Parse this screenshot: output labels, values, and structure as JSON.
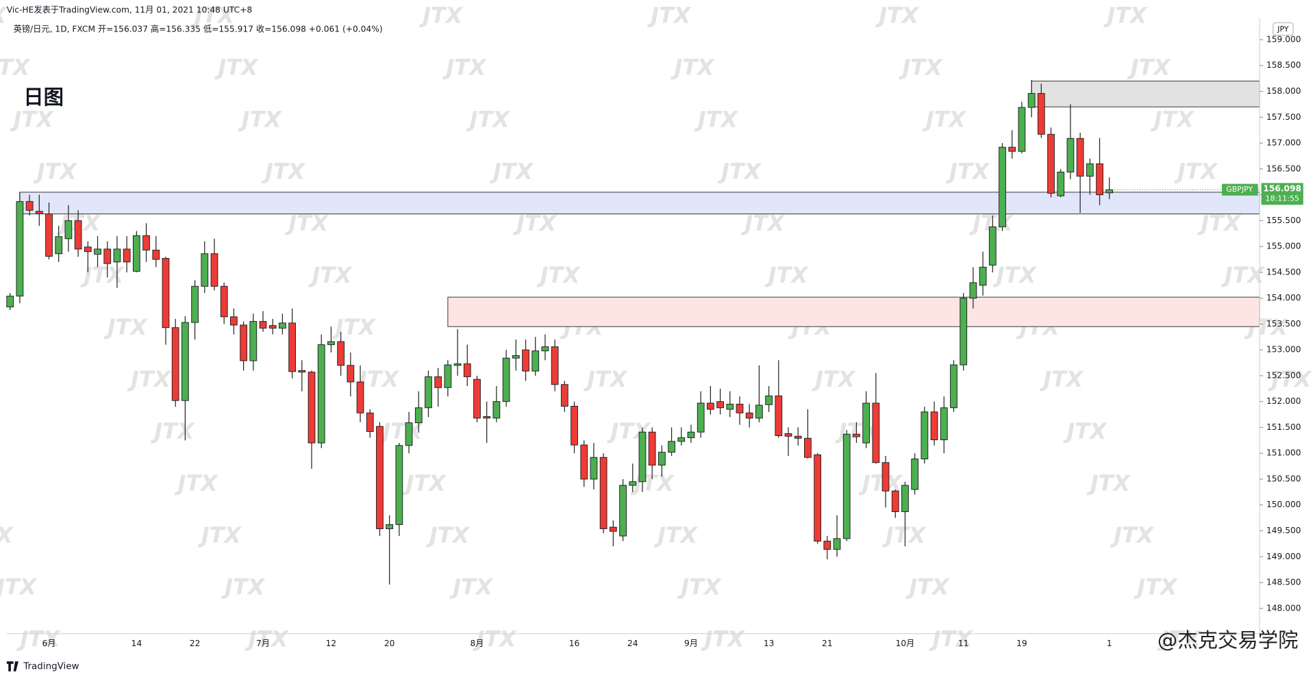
{
  "chart_data": {
    "type": "candlestick",
    "header": "Vic-HE发表于TradingView.com, 11月 01, 2021 10:48 UTC+8",
    "subtitle": "英镑/日元, 1D, FXCM 开=156.037 高=156.335 低=155.917 收=156.098 +0.061 (+0.04%)",
    "title": "日图",
    "currency": "JPY",
    "symbol": "GBPJPY",
    "countdown": "18:11:55",
    "brand": "TradingView",
    "watermark": "JTX",
    "signature": "@杰克交易学院",
    "categories": [
      null,
      null,
      null,
      null,
      "6月",
      null,
      null,
      null,
      null,
      null,
      null,
      null,
      null,
      "14",
      null,
      null,
      null,
      null,
      null,
      "22",
      null,
      null,
      null,
      null,
      null,
      null,
      "7月",
      null,
      null,
      null,
      null,
      null,
      null,
      "12",
      null,
      null,
      null,
      null,
      null,
      "20",
      null,
      null,
      null,
      null,
      null,
      null,
      null,
      null,
      "8月",
      null,
      null,
      null,
      null,
      null,
      null,
      null,
      null,
      null,
      "16",
      null,
      null,
      null,
      null,
      null,
      "24",
      null,
      null,
      null,
      null,
      null,
      "9月",
      null,
      null,
      null,
      null,
      null,
      null,
      null,
      "13",
      null,
      null,
      null,
      null,
      null,
      "21",
      null,
      null,
      null,
      null,
      null,
      null,
      null,
      "10月",
      null,
      null,
      null,
      null,
      null,
      "11",
      null,
      null,
      null,
      null,
      null,
      "19",
      null,
      null,
      null,
      null,
      null,
      null,
      null,
      null,
      "1"
    ],
    "open": [
      153.83,
      154.04,
      155.87,
      155.68,
      155.63,
      154.86,
      155.15,
      155.5,
      154.99,
      154.85,
      154.95,
      154.7,
      154.95,
      154.52,
      155.21,
      154.93,
      154.77,
      153.43,
      152.02,
      153.53,
      154.23,
      154.86,
      154.23,
      153.64,
      153.48,
      152.79,
      153.55,
      153.47,
      153.42,
      153.52,
      152.6,
      152.57,
      151.2,
      153.1,
      153.16,
      152.7,
      152.38,
      151.78,
      151.52,
      149.54,
      149.62,
      151.15,
      151.59,
      151.88,
      152.48,
      152.27,
      152.7,
      152.73,
      152.43,
      151.71,
      151.68,
      152.0,
      152.84,
      153.0,
      152.59,
      152.98,
      153.06,
      152.33,
      151.91,
      151.16,
      150.5,
      150.92,
      149.57,
      149.4,
      150.38,
      150.45,
      151.41,
      150.77,
      151.02,
      151.23,
      151.3,
      151.41,
      151.97,
      152.0,
      151.85,
      151.95,
      151.78,
      151.68,
      151.94,
      152.11,
      151.38,
      151.33,
      151.29,
      150.97,
      149.3,
      149.14,
      149.35,
      151.37,
      151.2,
      151.97,
      150.82,
      150.27,
      149.87,
      150.3,
      150.89,
      151.8,
      151.26,
      151.88,
      152.71,
      154.0,
      154.25,
      154.64,
      155.38,
      156.92,
      156.84,
      157.69,
      157.96,
      157.17,
      155.98,
      156.44,
      157.09,
      156.36,
      156.6,
      156.037
    ],
    "high": [
      154.1,
      156.05,
      156.0,
      156.0,
      155.85,
      155.4,
      155.8,
      155.7,
      155.1,
      155.2,
      155.1,
      155.2,
      155.2,
      155.3,
      155.45,
      155.2,
      154.8,
      153.6,
      153.65,
      154.35,
      155.1,
      155.15,
      154.3,
      153.8,
      153.55,
      153.7,
      153.75,
      153.6,
      153.7,
      153.8,
      152.8,
      152.6,
      153.3,
      153.45,
      153.35,
      152.95,
      152.7,
      151.85,
      151.6,
      149.8,
      151.2,
      151.8,
      152.2,
      152.6,
      152.65,
      152.8,
      153.4,
      153.1,
      152.5,
      152.0,
      152.3,
      153.0,
      153.2,
      153.2,
      153.25,
      153.3,
      153.2,
      152.4,
      152.0,
      151.25,
      151.2,
      151.0,
      149.7,
      150.5,
      150.8,
      151.5,
      151.5,
      151.15,
      151.5,
      151.5,
      151.55,
      152.2,
      152.3,
      152.25,
      152.2,
      152.1,
      151.95,
      152.7,
      152.3,
      152.8,
      151.5,
      151.5,
      151.85,
      151.0,
      149.4,
      149.8,
      151.45,
      151.6,
      152.2,
      152.55,
      150.95,
      150.3,
      150.45,
      151.0,
      151.9,
      152.0,
      152.1,
      152.8,
      154.1,
      154.6,
      154.9,
      155.6,
      157.0,
      157.25,
      157.8,
      158.22,
      158.15,
      157.3,
      156.5,
      157.75,
      157.2,
      156.7,
      157.1,
      156.335
    ],
    "low": [
      153.77,
      153.9,
      155.6,
      155.4,
      154.75,
      154.7,
      154.9,
      154.8,
      154.5,
      154.6,
      154.4,
      154.2,
      154.5,
      154.5,
      154.7,
      154.6,
      153.1,
      151.9,
      151.25,
      153.2,
      154.1,
      154.15,
      153.5,
      153.3,
      152.6,
      152.6,
      153.35,
      153.3,
      153.3,
      152.45,
      152.2,
      150.7,
      151.1,
      152.95,
      152.5,
      152.1,
      151.6,
      151.3,
      149.4,
      148.46,
      149.4,
      151.0,
      151.4,
      151.7,
      151.9,
      152.1,
      152.5,
      152.3,
      151.6,
      151.2,
      151.6,
      151.9,
      152.6,
      152.4,
      152.5,
      152.8,
      152.2,
      151.8,
      151.0,
      150.35,
      150.3,
      149.45,
      149.2,
      149.3,
      150.25,
      150.25,
      150.5,
      150.55,
      150.95,
      151.15,
      151.2,
      151.3,
      151.75,
      151.75,
      151.7,
      151.55,
      151.5,
      151.6,
      151.8,
      151.3,
      150.95,
      151.15,
      150.9,
      149.25,
      148.95,
      149.0,
      149.3,
      151.2,
      151.1,
      150.8,
      149.95,
      149.75,
      149.2,
      150.2,
      150.8,
      151.15,
      151.0,
      151.8,
      152.6,
      153.8,
      154.05,
      154.5,
      155.3,
      156.7,
      156.8,
      157.5,
      157.1,
      155.95,
      155.95,
      156.3,
      155.65,
      156.0,
      155.8,
      155.917
    ],
    "close": [
      154.04,
      155.87,
      155.7,
      155.63,
      154.81,
      155.19,
      155.5,
      154.95,
      154.9,
      154.95,
      154.67,
      154.95,
      154.7,
      155.21,
      154.93,
      154.75,
      153.43,
      152.02,
      153.53,
      154.23,
      154.86,
      154.23,
      153.64,
      153.48,
      152.79,
      153.55,
      153.42,
      153.42,
      153.52,
      152.58,
      152.57,
      151.2,
      153.1,
      153.16,
      152.7,
      152.38,
      151.78,
      151.42,
      149.54,
      149.62,
      151.15,
      151.59,
      151.88,
      152.48,
      152.27,
      152.71,
      152.73,
      152.48,
      151.68,
      151.68,
      152.0,
      152.84,
      152.89,
      152.59,
      152.98,
      153.06,
      152.33,
      151.91,
      151.16,
      150.5,
      150.92,
      149.54,
      149.49,
      150.38,
      150.45,
      151.41,
      150.77,
      151.02,
      151.23,
      151.3,
      151.41,
      151.97,
      151.85,
      151.88,
      151.95,
      151.78,
      151.68,
      151.93,
      152.11,
      151.34,
      151.33,
      151.29,
      150.92,
      149.3,
      149.14,
      149.35,
      151.37,
      151.32,
      151.97,
      150.82,
      150.27,
      149.87,
      150.38,
      150.89,
      151.8,
      151.26,
      151.88,
      152.71,
      154.0,
      154.3,
      154.6,
      155.38,
      156.92,
      156.84,
      157.69,
      157.96,
      157.17,
      156.03,
      156.44,
      157.09,
      156.36,
      156.6,
      156.0,
      156.098
    ],
    "up_color": "#4caf50",
    "down_color": "#ef3b36",
    "zones": [
      {
        "low": 155.63,
        "high": 156.05,
        "color": "#e1e6fb"
      },
      {
        "low": 153.45,
        "high": 154.02,
        "color": "#fde5e3"
      },
      {
        "low": 157.7,
        "high": 158.2,
        "color": "#e2e2e2"
      }
    ],
    "ylim": [
      147.51,
      159.41
    ],
    "yticks": [
      {
        "value": 148,
        "label": "148.000"
      },
      {
        "value": 148.5,
        "label": "148.500"
      },
      {
        "value": 149,
        "label": "149.000"
      },
      {
        "value": 149.5,
        "label": "149.500"
      },
      {
        "value": 150,
        "label": "150.000"
      },
      {
        "value": 150.5,
        "label": "150.500"
      },
      {
        "value": 151,
        "label": "151.000"
      },
      {
        "value": 151.5,
        "label": "151.500"
      },
      {
        "value": 152,
        "label": "152.000"
      },
      {
        "value": 152.5,
        "label": "152.500"
      },
      {
        "value": 153,
        "label": "153.000"
      },
      {
        "value": 153.5,
        "label": "153.500"
      },
      {
        "value": 154,
        "label": "154.000"
      },
      {
        "value": 154.5,
        "label": "154.500"
      },
      {
        "value": 155,
        "label": "155.000"
      },
      {
        "value": 155.5,
        "label": "155.500"
      },
      {
        "value": 156,
        "label": "156.000"
      },
      {
        "value": 156.5,
        "label": "156.500"
      },
      {
        "value": 157,
        "label": "157.000"
      },
      {
        "value": 157.5,
        "label": "157.500"
      },
      {
        "value": 158,
        "label": "158.000"
      },
      {
        "value": 158.5,
        "label": "158.500"
      },
      {
        "value": 159,
        "label": "159.000"
      }
    ],
    "grid": false
  }
}
